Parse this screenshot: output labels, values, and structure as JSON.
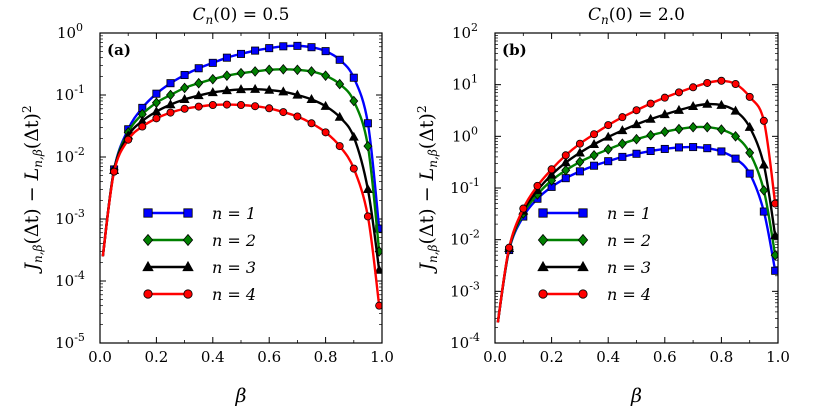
{
  "chart_data": [
    {
      "type": "line",
      "title": "C_n(0) = 0.5",
      "panel_label": "(a)",
      "xlabel": "β",
      "ylabel": "J_{n,β}(Δt) − L_{n,β}(Δt)²",
      "xlim": [
        0.0,
        1.0
      ],
      "ylim": [
        1e-05,
        1.0
      ],
      "yscale": "log",
      "xticks": [
        "0.0",
        "0.2",
        "0.4",
        "0.6",
        "0.8",
        "1.0"
      ],
      "yticks": [
        {
          "base": "10",
          "exp": "0"
        },
        {
          "base": "10",
          "exp": "-1"
        },
        {
          "base": "10",
          "exp": "-2"
        },
        {
          "base": "10",
          "exp": "-3"
        },
        {
          "base": "10",
          "exp": "-4"
        },
        {
          "base": "10",
          "exp": "-5"
        }
      ],
      "legend_position": "lower-center",
      "series": [
        {
          "name": "n = 1",
          "color": "#0000ff",
          "marker": "square",
          "x": [
            0.01,
            0.05,
            0.1,
            0.15,
            0.2,
            0.25,
            0.3,
            0.35,
            0.4,
            0.45,
            0.5,
            0.55,
            0.6,
            0.65,
            0.7,
            0.75,
            0.8,
            0.85,
            0.9,
            0.95,
            0.99
          ],
          "y": [
            0.00025,
            0.0063,
            0.028,
            0.062,
            0.105,
            0.155,
            0.21,
            0.27,
            0.33,
            0.4,
            0.46,
            0.52,
            0.57,
            0.61,
            0.62,
            0.59,
            0.51,
            0.37,
            0.19,
            0.035,
            0.0007
          ]
        },
        {
          "name": "n = 2",
          "color": "#008000",
          "marker": "diamond",
          "x": [
            0.01,
            0.05,
            0.1,
            0.15,
            0.2,
            0.25,
            0.3,
            0.35,
            0.4,
            0.45,
            0.5,
            0.55,
            0.6,
            0.65,
            0.7,
            0.75,
            0.8,
            0.85,
            0.9,
            0.95,
            0.99
          ],
          "y": [
            0.00025,
            0.0062,
            0.025,
            0.049,
            0.075,
            0.1,
            0.13,
            0.155,
            0.18,
            0.205,
            0.225,
            0.24,
            0.255,
            0.26,
            0.255,
            0.24,
            0.205,
            0.15,
            0.08,
            0.015,
            0.0003
          ]
        },
        {
          "name": "n = 3",
          "color": "#000000",
          "marker": "triangle",
          "x": [
            0.01,
            0.05,
            0.1,
            0.15,
            0.2,
            0.25,
            0.3,
            0.35,
            0.4,
            0.45,
            0.5,
            0.55,
            0.6,
            0.65,
            0.7,
            0.75,
            0.8,
            0.85,
            0.9,
            0.95,
            0.99
          ],
          "y": [
            0.00025,
            0.0061,
            0.022,
            0.038,
            0.054,
            0.07,
            0.085,
            0.098,
            0.11,
            0.118,
            0.123,
            0.124,
            0.12,
            0.113,
            0.1,
            0.085,
            0.066,
            0.044,
            0.021,
            0.003,
            0.00015
          ]
        },
        {
          "name": "n = 4",
          "color": "#ff0000",
          "marker": "circle",
          "x": [
            0.01,
            0.05,
            0.1,
            0.15,
            0.2,
            0.25,
            0.3,
            0.35,
            0.4,
            0.45,
            0.5,
            0.55,
            0.6,
            0.65,
            0.7,
            0.75,
            0.8,
            0.85,
            0.9,
            0.95,
            0.99
          ],
          "y": [
            0.00025,
            0.0058,
            0.019,
            0.031,
            0.042,
            0.052,
            0.06,
            0.065,
            0.069,
            0.07,
            0.069,
            0.066,
            0.061,
            0.053,
            0.045,
            0.035,
            0.025,
            0.015,
            0.0065,
            0.0011,
            4e-05
          ]
        }
      ]
    },
    {
      "type": "line",
      "title": "C_n(0) = 2.0",
      "panel_label": "(b)",
      "xlabel": "β",
      "ylabel": "J_{n,β}(Δt) − L_{n,β}(Δt)²",
      "xlim": [
        0.0,
        1.0
      ],
      "ylim": [
        0.0001,
        100
      ],
      "yscale": "log",
      "xticks": [
        "0.0",
        "0.2",
        "0.4",
        "0.6",
        "0.8",
        "1.0"
      ],
      "yticks": [
        {
          "base": "10",
          "exp": "2"
        },
        {
          "base": "10",
          "exp": "1"
        },
        {
          "base": "10",
          "exp": "0"
        },
        {
          "base": "10",
          "exp": "-1"
        },
        {
          "base": "10",
          "exp": "-2"
        },
        {
          "base": "10",
          "exp": "-3"
        },
        {
          "base": "10",
          "exp": "-4"
        }
      ],
      "legend_position": "lower-center",
      "series": [
        {
          "name": "n = 1",
          "color": "#0000ff",
          "marker": "square",
          "x": [
            0.01,
            0.05,
            0.1,
            0.15,
            0.2,
            0.25,
            0.3,
            0.35,
            0.4,
            0.45,
            0.5,
            0.55,
            0.6,
            0.65,
            0.7,
            0.75,
            0.8,
            0.85,
            0.9,
            0.95,
            0.99
          ],
          "y": [
            0.00025,
            0.0063,
            0.028,
            0.062,
            0.105,
            0.155,
            0.21,
            0.27,
            0.33,
            0.4,
            0.46,
            0.52,
            0.57,
            0.61,
            0.62,
            0.59,
            0.51,
            0.37,
            0.19,
            0.035,
            0.0025
          ]
        },
        {
          "name": "n = 2",
          "color": "#008000",
          "marker": "diamond",
          "x": [
            0.01,
            0.05,
            0.1,
            0.15,
            0.2,
            0.25,
            0.3,
            0.35,
            0.4,
            0.45,
            0.5,
            0.55,
            0.6,
            0.65,
            0.7,
            0.75,
            0.8,
            0.85,
            0.9,
            0.95,
            0.99
          ],
          "y": [
            0.00025,
            0.0065,
            0.032,
            0.075,
            0.14,
            0.22,
            0.32,
            0.43,
            0.56,
            0.72,
            0.88,
            1.05,
            1.22,
            1.38,
            1.5,
            1.5,
            1.35,
            1.0,
            0.48,
            0.09,
            0.005
          ]
        },
        {
          "name": "n = 3",
          "color": "#000000",
          "marker": "triangle",
          "x": [
            0.01,
            0.05,
            0.1,
            0.15,
            0.2,
            0.25,
            0.3,
            0.35,
            0.4,
            0.45,
            0.5,
            0.55,
            0.6,
            0.65,
            0.7,
            0.75,
            0.8,
            0.85,
            0.9,
            0.95,
            0.99
          ],
          "y": [
            0.00025,
            0.0068,
            0.036,
            0.09,
            0.18,
            0.31,
            0.48,
            0.7,
            0.97,
            1.3,
            1.7,
            2.15,
            2.65,
            3.2,
            3.8,
            4.2,
            4.0,
            3.1,
            1.5,
            0.28,
            0.012
          ]
        },
        {
          "name": "n = 4",
          "color": "#ff0000",
          "marker": "circle",
          "x": [
            0.01,
            0.05,
            0.1,
            0.15,
            0.2,
            0.25,
            0.3,
            0.35,
            0.4,
            0.45,
            0.5,
            0.55,
            0.6,
            0.65,
            0.7,
            0.75,
            0.8,
            0.85,
            0.9,
            0.95,
            0.99
          ],
          "y": [
            0.00025,
            0.007,
            0.04,
            0.11,
            0.23,
            0.43,
            0.72,
            1.1,
            1.65,
            2.35,
            3.2,
            4.3,
            5.6,
            7.1,
            8.9,
            10.8,
            11.9,
            10.3,
            5.8,
            2.0,
            0.05
          ]
        }
      ]
    }
  ]
}
